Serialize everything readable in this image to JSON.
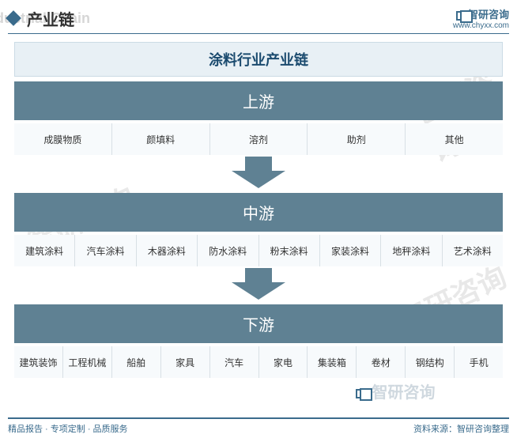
{
  "header": {
    "title_cn": "产业链",
    "title_en": "Industrial Chain",
    "brand": "智研咨询",
    "url": "www.chyxx.com"
  },
  "colors": {
    "primary": "#5f8193",
    "primary_dark": "#4a6b7d",
    "title_bg": "#e8f0f5",
    "title_text": "#1a4a6e",
    "cell_bg": "#f7fafc",
    "cell_border": "#d8e0e5",
    "arrow": "#5f8193",
    "accent": "#3a6b8c"
  },
  "chain": {
    "title": "涂料行业产业链",
    "stages": [
      {
        "name": "上游",
        "items": [
          "成膜物质",
          "颜填料",
          "溶剂",
          "助剂",
          "其他"
        ]
      },
      {
        "name": "中游",
        "items": [
          "建筑涂料",
          "汽车涂料",
          "木器涂料",
          "防水涂料",
          "粉末涂料",
          "家装涂料",
          "地秤涂料",
          "艺术涂料"
        ]
      },
      {
        "name": "下游",
        "items": [
          "建筑装饰",
          "工程机械",
          "船舶",
          "家具",
          "汽车",
          "家电",
          "集装箱",
          "卷材",
          "钢结构",
          "手机"
        ]
      }
    ]
  },
  "footer": {
    "left": "精品报告 · 专项定制 · 品质服务",
    "right": "资料来源：智研咨询整理"
  },
  "layout": {
    "arrow_shaft_w": 34,
    "arrow_shaft_h": 18,
    "arrow_head_w": 68,
    "arrow_head_h": 22,
    "stage_header_fontsize": 20,
    "cell_fontsize": 12
  }
}
